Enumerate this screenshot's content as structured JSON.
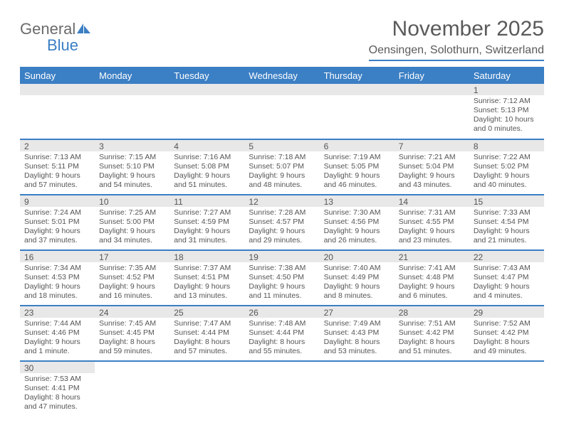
{
  "logo": {
    "text1": "General",
    "text2": "Blue"
  },
  "title": "November 2025",
  "location": "Oensingen, Solothurn, Switzerland",
  "colors": {
    "accent": "#3b7fc4",
    "header_bg": "#3b7fc4",
    "daynum_bg": "#e8e8e8",
    "text": "#5a5a5a"
  },
  "weekdays": [
    "Sunday",
    "Monday",
    "Tuesday",
    "Wednesday",
    "Thursday",
    "Friday",
    "Saturday"
  ],
  "weeks": [
    [
      null,
      null,
      null,
      null,
      null,
      null,
      {
        "n": "1",
        "sr": "Sunrise: 7:12 AM",
        "ss": "Sunset: 5:13 PM",
        "dl": "Daylight: 10 hours and 0 minutes."
      }
    ],
    [
      {
        "n": "2",
        "sr": "Sunrise: 7:13 AM",
        "ss": "Sunset: 5:11 PM",
        "dl": "Daylight: 9 hours and 57 minutes."
      },
      {
        "n": "3",
        "sr": "Sunrise: 7:15 AM",
        "ss": "Sunset: 5:10 PM",
        "dl": "Daylight: 9 hours and 54 minutes."
      },
      {
        "n": "4",
        "sr": "Sunrise: 7:16 AM",
        "ss": "Sunset: 5:08 PM",
        "dl": "Daylight: 9 hours and 51 minutes."
      },
      {
        "n": "5",
        "sr": "Sunrise: 7:18 AM",
        "ss": "Sunset: 5:07 PM",
        "dl": "Daylight: 9 hours and 48 minutes."
      },
      {
        "n": "6",
        "sr": "Sunrise: 7:19 AM",
        "ss": "Sunset: 5:05 PM",
        "dl": "Daylight: 9 hours and 46 minutes."
      },
      {
        "n": "7",
        "sr": "Sunrise: 7:21 AM",
        "ss": "Sunset: 5:04 PM",
        "dl": "Daylight: 9 hours and 43 minutes."
      },
      {
        "n": "8",
        "sr": "Sunrise: 7:22 AM",
        "ss": "Sunset: 5:02 PM",
        "dl": "Daylight: 9 hours and 40 minutes."
      }
    ],
    [
      {
        "n": "9",
        "sr": "Sunrise: 7:24 AM",
        "ss": "Sunset: 5:01 PM",
        "dl": "Daylight: 9 hours and 37 minutes."
      },
      {
        "n": "10",
        "sr": "Sunrise: 7:25 AM",
        "ss": "Sunset: 5:00 PM",
        "dl": "Daylight: 9 hours and 34 minutes."
      },
      {
        "n": "11",
        "sr": "Sunrise: 7:27 AM",
        "ss": "Sunset: 4:59 PM",
        "dl": "Daylight: 9 hours and 31 minutes."
      },
      {
        "n": "12",
        "sr": "Sunrise: 7:28 AM",
        "ss": "Sunset: 4:57 PM",
        "dl": "Daylight: 9 hours and 29 minutes."
      },
      {
        "n": "13",
        "sr": "Sunrise: 7:30 AM",
        "ss": "Sunset: 4:56 PM",
        "dl": "Daylight: 9 hours and 26 minutes."
      },
      {
        "n": "14",
        "sr": "Sunrise: 7:31 AM",
        "ss": "Sunset: 4:55 PM",
        "dl": "Daylight: 9 hours and 23 minutes."
      },
      {
        "n": "15",
        "sr": "Sunrise: 7:33 AM",
        "ss": "Sunset: 4:54 PM",
        "dl": "Daylight: 9 hours and 21 minutes."
      }
    ],
    [
      {
        "n": "16",
        "sr": "Sunrise: 7:34 AM",
        "ss": "Sunset: 4:53 PM",
        "dl": "Daylight: 9 hours and 18 minutes."
      },
      {
        "n": "17",
        "sr": "Sunrise: 7:35 AM",
        "ss": "Sunset: 4:52 PM",
        "dl": "Daylight: 9 hours and 16 minutes."
      },
      {
        "n": "18",
        "sr": "Sunrise: 7:37 AM",
        "ss": "Sunset: 4:51 PM",
        "dl": "Daylight: 9 hours and 13 minutes."
      },
      {
        "n": "19",
        "sr": "Sunrise: 7:38 AM",
        "ss": "Sunset: 4:50 PM",
        "dl": "Daylight: 9 hours and 11 minutes."
      },
      {
        "n": "20",
        "sr": "Sunrise: 7:40 AM",
        "ss": "Sunset: 4:49 PM",
        "dl": "Daylight: 9 hours and 8 minutes."
      },
      {
        "n": "21",
        "sr": "Sunrise: 7:41 AM",
        "ss": "Sunset: 4:48 PM",
        "dl": "Daylight: 9 hours and 6 minutes."
      },
      {
        "n": "22",
        "sr": "Sunrise: 7:43 AM",
        "ss": "Sunset: 4:47 PM",
        "dl": "Daylight: 9 hours and 4 minutes."
      }
    ],
    [
      {
        "n": "23",
        "sr": "Sunrise: 7:44 AM",
        "ss": "Sunset: 4:46 PM",
        "dl": "Daylight: 9 hours and 1 minute."
      },
      {
        "n": "24",
        "sr": "Sunrise: 7:45 AM",
        "ss": "Sunset: 4:45 PM",
        "dl": "Daylight: 8 hours and 59 minutes."
      },
      {
        "n": "25",
        "sr": "Sunrise: 7:47 AM",
        "ss": "Sunset: 4:44 PM",
        "dl": "Daylight: 8 hours and 57 minutes."
      },
      {
        "n": "26",
        "sr": "Sunrise: 7:48 AM",
        "ss": "Sunset: 4:44 PM",
        "dl": "Daylight: 8 hours and 55 minutes."
      },
      {
        "n": "27",
        "sr": "Sunrise: 7:49 AM",
        "ss": "Sunset: 4:43 PM",
        "dl": "Daylight: 8 hours and 53 minutes."
      },
      {
        "n": "28",
        "sr": "Sunrise: 7:51 AM",
        "ss": "Sunset: 4:42 PM",
        "dl": "Daylight: 8 hours and 51 minutes."
      },
      {
        "n": "29",
        "sr": "Sunrise: 7:52 AM",
        "ss": "Sunset: 4:42 PM",
        "dl": "Daylight: 8 hours and 49 minutes."
      }
    ],
    [
      {
        "n": "30",
        "sr": "Sunrise: 7:53 AM",
        "ss": "Sunset: 4:41 PM",
        "dl": "Daylight: 8 hours and 47 minutes."
      },
      null,
      null,
      null,
      null,
      null,
      null
    ]
  ]
}
